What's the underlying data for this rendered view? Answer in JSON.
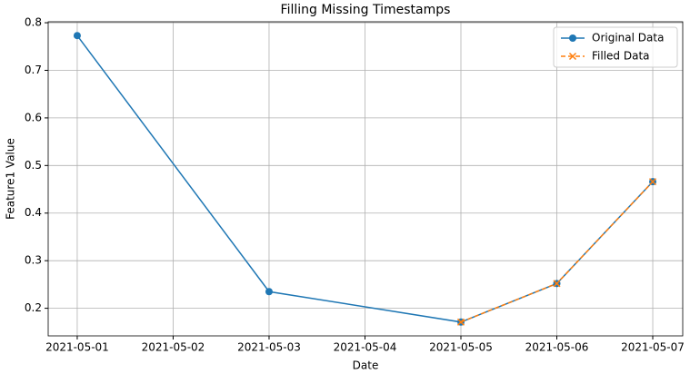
{
  "chart_data": {
    "type": "line",
    "title": "Filling Missing Timestamps",
    "xlabel": "Date",
    "ylabel": "Feature1 Value",
    "series": [
      {
        "name": "Original Data",
        "color": "#1f77b4",
        "marker": "o",
        "linestyle": "solid",
        "x": [
          "2021-05-01",
          "2021-05-03",
          "2021-05-05",
          "2021-05-06",
          "2021-05-07"
        ],
        "values": [
          0.773,
          0.235,
          0.171,
          0.252,
          0.466
        ]
      },
      {
        "name": "Filled Data",
        "color": "#ff7f0e",
        "marker": "x",
        "linestyle": "dashed",
        "x": [
          "2021-05-05",
          "2021-05-06",
          "2021-05-07"
        ],
        "values": [
          0.171,
          0.252,
          0.466
        ]
      }
    ],
    "xlim": [
      "2021-04-30T16:44",
      "2021-05-07T07:30"
    ],
    "xticks": [
      "2021-05-01",
      "2021-05-02",
      "2021-05-03",
      "2021-05-04",
      "2021-05-05",
      "2021-05-06",
      "2021-05-07"
    ],
    "ylim": [
      0.142,
      0.802
    ],
    "yticks": [
      0.2,
      0.3,
      0.4,
      0.5,
      0.6,
      0.7,
      0.8
    ],
    "grid": true,
    "legend": "upper right"
  }
}
